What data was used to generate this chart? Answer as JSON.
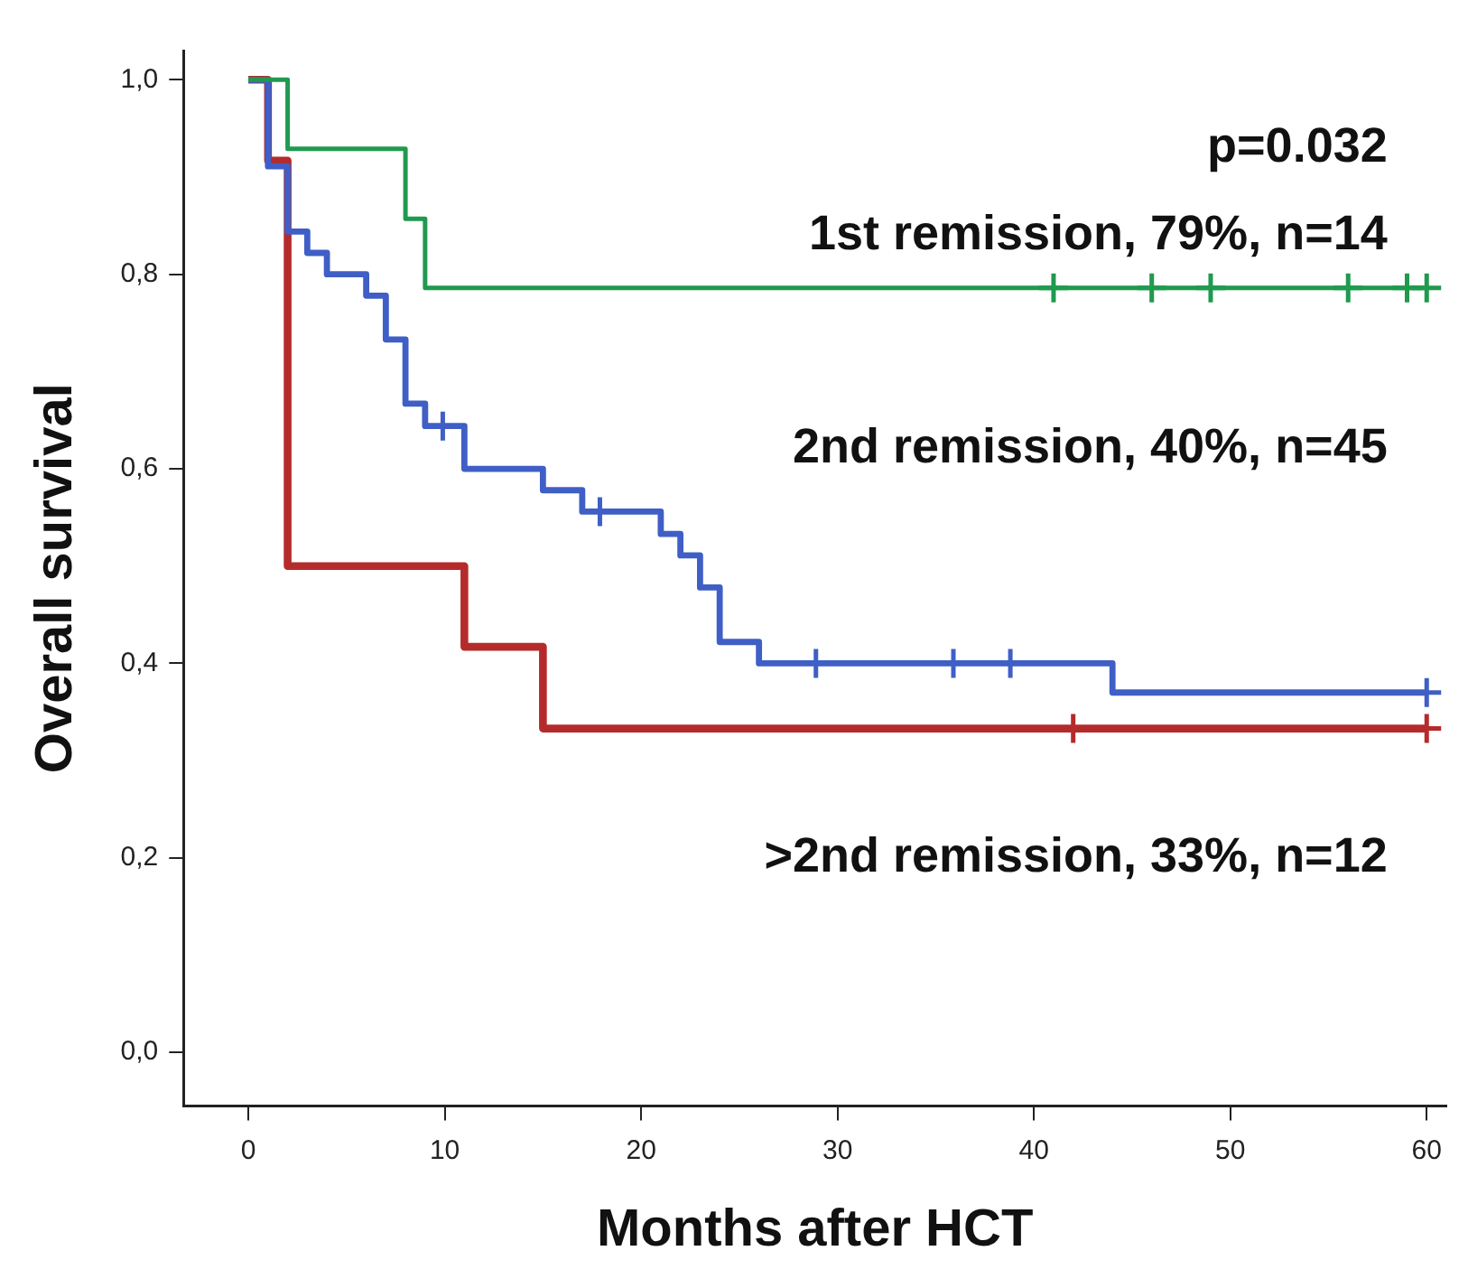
{
  "chart_data": {
    "type": "step",
    "xlabel": "Months after HCT",
    "ylabel": "Overall survival",
    "xlim": [
      -3.3,
      61
    ],
    "xticks": [
      0,
      10,
      20,
      30,
      40,
      50,
      60
    ],
    "ylim": [
      -0.055,
      1.03
    ],
    "yticks": [
      {
        "value": 0,
        "label": "0,0"
      },
      {
        "value": 0.2,
        "label": "0,2"
      },
      {
        "value": 0.4,
        "label": "0,4"
      },
      {
        "value": 0.6,
        "label": "0,6"
      },
      {
        "value": 0.8,
        "label": "0,8"
      },
      {
        "value": 1,
        "label": "1,0"
      }
    ],
    "grid": false,
    "legend": false,
    "marker": "none",
    "line_style": "solid",
    "annotations": [
      "p=0.032"
    ],
    "series": [
      {
        "name": "1st remission, 79%, n=14",
        "color": "#1f9a4e",
        "x": [
          0,
          2,
          8,
          9,
          60
        ],
        "values": [
          1,
          0.929,
          0.857,
          0.786,
          0.786
        ]
      },
      {
        "name": "2nd remission, 40%, n=45",
        "color": "#3f5fc6",
        "x": [
          0,
          1,
          2,
          3,
          4,
          6,
          7,
          8,
          9,
          11,
          15,
          17,
          21,
          22,
          23,
          24,
          26,
          44,
          60
        ],
        "values": [
          1,
          0.911,
          0.844,
          0.822,
          0.8,
          0.778,
          0.733,
          0.667,
          0.644,
          0.6,
          0.578,
          0.556,
          0.533,
          0.511,
          0.478,
          0.422,
          0.4,
          0.37,
          0.37
        ]
      },
      {
        "name": ">2nd remission, 33%, n=12",
        "color": "#b52b2b",
        "x": [
          0,
          1,
          2,
          11,
          15,
          60
        ],
        "values": [
          1,
          0.917,
          0.5,
          0.417,
          0.333,
          0.333
        ]
      },
      {
        "type": "scatter",
        "marker": "cross",
        "color": "#1f9a4e",
        "x": [
          41,
          46,
          49,
          56,
          59,
          60
        ],
        "values": [
          0.786,
          0.786,
          0.786,
          0.786,
          0.786,
          0.786
        ]
      },
      {
        "type": "scatter",
        "marker": "cross",
        "color": "#3f5fc6",
        "x": [
          9.9,
          17.9,
          28.9,
          35.9,
          38.8,
          60
        ],
        "values": [
          0.644,
          0.556,
          0.4,
          0.4,
          0.4,
          0.37
        ]
      },
      {
        "type": "scatter",
        "marker": "cross",
        "color": "#b52b2b",
        "x": [
          42,
          60
        ],
        "values": [
          0.333,
          0.333
        ]
      }
    ]
  }
}
